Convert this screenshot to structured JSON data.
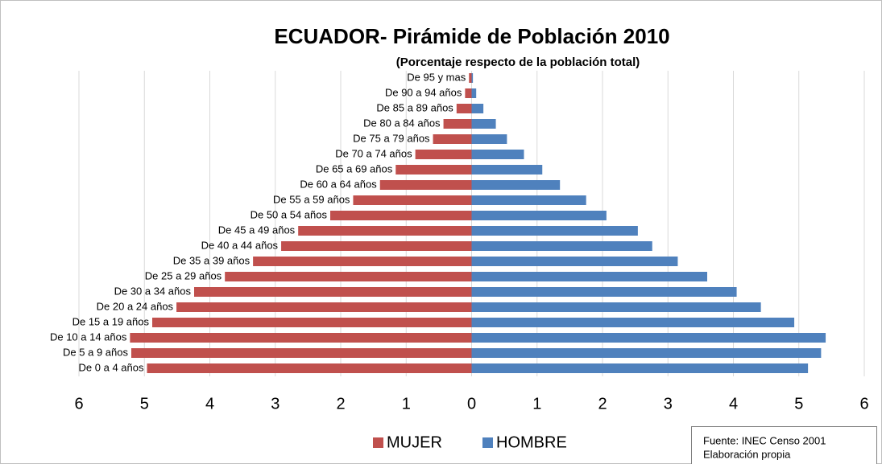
{
  "chart_data": {
    "type": "bar",
    "title": "ECUADOR- Pirámide de Población 2010",
    "subtitle": "(Porcentaje respecto de la población total)",
    "categories": [
      "De 0 a 4 años",
      "De 5 a 9 años",
      "De 10 a 14 años",
      "De 15 a 19 años",
      "De 20 a 24 años",
      "De 30 a 34 años",
      "De 25 a 29 años",
      "De 35 a 39 años",
      "De 40 a 44 años",
      "De 45 a 49 años",
      "De 50 a 54 años",
      "De 55 a 59 años",
      "De 60 a 64 años",
      "De 65 a 69 años",
      "De 70 a 74 años",
      "De 75 a 79 años",
      "De 80 a 84 años",
      "De 85 a 89 años",
      "De 90 a 94 años",
      "De 95 y mas"
    ],
    "series": [
      {
        "name": "MUJER",
        "color": "#c0504d",
        "values": [
          -4.96,
          -5.2,
          -5.22,
          -4.88,
          -4.51,
          -4.24,
          -3.77,
          -3.34,
          -2.91,
          -2.65,
          -2.16,
          -1.81,
          -1.4,
          -1.16,
          -0.86,
          -0.59,
          -0.43,
          -0.23,
          -0.1,
          -0.04
        ]
      },
      {
        "name": "HOMBRE",
        "color": "#4f81bd",
        "values": [
          5.14,
          5.34,
          5.41,
          4.93,
          4.42,
          4.05,
          3.6,
          3.15,
          2.76,
          2.54,
          2.06,
          1.75,
          1.35,
          1.08,
          0.8,
          0.54,
          0.37,
          0.18,
          0.07,
          0.02
        ]
      }
    ],
    "xlim": [
      -6,
      6
    ],
    "xticks": [
      {
        "value": -6,
        "label": "6"
      },
      {
        "value": -5,
        "label": "5"
      },
      {
        "value": -4,
        "label": "4"
      },
      {
        "value": -3,
        "label": "3"
      },
      {
        "value": -2,
        "label": "2"
      },
      {
        "value": -1,
        "label": "1"
      },
      0,
      1,
      2,
      3,
      4,
      5,
      6
    ],
    "grid": true,
    "annotations": [
      "Fuente: INEC Censo 2001",
      "Elaboración propia"
    ]
  }
}
